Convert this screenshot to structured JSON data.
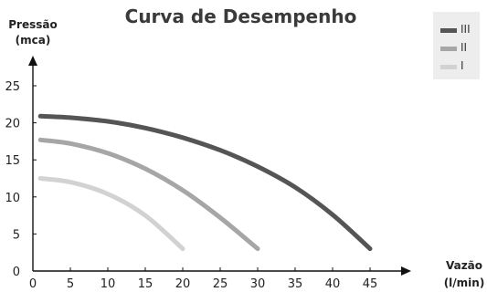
{
  "chart_data": {
    "type": "line",
    "title": "Curva de Desempenho",
    "ylabel": [
      "Pressão",
      "(mca)"
    ],
    "xlabel": [
      "Vazão",
      "(l/min)"
    ],
    "x_ticks": [
      0,
      5,
      10,
      15,
      20,
      25,
      30,
      35,
      40,
      45
    ],
    "y_ticks": [
      0,
      5,
      10,
      15,
      20,
      25
    ],
    "xlim": [
      0,
      48
    ],
    "ylim": [
      0,
      28
    ],
    "grid": false,
    "legend_position": "top-right",
    "series": [
      {
        "name": "III",
        "color": "#555555",
        "x": [
          1,
          5,
          10,
          15,
          20,
          25,
          30,
          35,
          40,
          45
        ],
        "y": [
          20.9,
          20.7,
          20.2,
          19.3,
          18.0,
          16.3,
          14.1,
          11.3,
          7.6,
          3.0
        ]
      },
      {
        "name": "II",
        "color": "#a6a6a6",
        "x": [
          1,
          5,
          10,
          15,
          20,
          25,
          30
        ],
        "y": [
          17.7,
          17.2,
          15.9,
          13.8,
          10.9,
          7.2,
          3.0
        ]
      },
      {
        "name": "I",
        "color": "#d2d2d2",
        "x": [
          1,
          5,
          10,
          15,
          20
        ],
        "y": [
          12.5,
          12.0,
          10.4,
          7.5,
          3.0
        ]
      }
    ]
  }
}
